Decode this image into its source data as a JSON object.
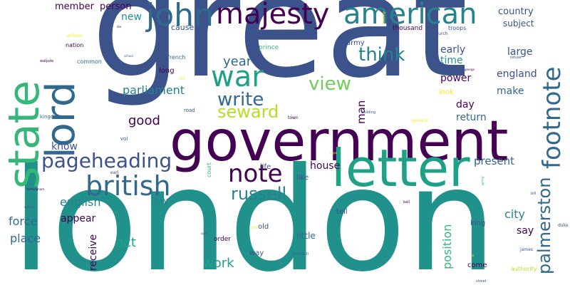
{
  "palette": {
    "background": "#ffffff",
    "dark_purple": "#440154",
    "indigo": "#3b528b",
    "blue": "#31688e",
    "teal_blue": "#26828e",
    "teal": "#21918c",
    "green_teal": "#1fa187",
    "green": "#35b779",
    "light_green": "#6ece58",
    "yellow_green": "#b5de2b",
    "yellow": "#fde725"
  },
  "words": [
    {
      "text": "great",
      "color": "#3b528b",
      "orientation": "horizontal"
    },
    {
      "text": "london",
      "color": "#21918c",
      "orientation": "horizontal"
    },
    {
      "text": "government",
      "color": "#440154",
      "orientation": "horizontal"
    },
    {
      "text": "letter",
      "color": "#1fa187",
      "orientation": "horizontal"
    },
    {
      "text": "state",
      "color": "#35b779",
      "orientation": "vertical"
    },
    {
      "text": "lord",
      "color": "#31688e",
      "orientation": "vertical"
    },
    {
      "text": "majesty",
      "color": "#440154",
      "orientation": "horizontal"
    },
    {
      "text": "american",
      "color": "#26828e",
      "orientation": "horizontal"
    },
    {
      "text": "john",
      "color": "#31688e",
      "orientation": "horizontal"
    },
    {
      "text": "war",
      "color": "#1fa187",
      "orientation": "horizontal"
    },
    {
      "text": "footnote",
      "color": "#31688e",
      "orientation": "vertical"
    },
    {
      "text": "british",
      "color": "#31688e",
      "orientation": "horizontal"
    },
    {
      "text": "note",
      "color": "#440154",
      "orientation": "horizontal"
    },
    {
      "text": "pageheading",
      "color": "#3b528b",
      "orientation": "horizontal"
    },
    {
      "text": "palmerston",
      "color": "#31688e",
      "orientation": "vertical"
    },
    {
      "text": "think",
      "color": "#26828e",
      "orientation": "horizontal"
    },
    {
      "text": "view",
      "color": "#6ece58",
      "orientation": "horizontal"
    },
    {
      "text": "write",
      "color": "#31688e",
      "orientation": "horizontal"
    },
    {
      "text": "seward",
      "color": "#b5de2b",
      "orientation": "horizontal"
    },
    {
      "text": "russell",
      "color": "#26828e",
      "orientation": "horizontal"
    },
    {
      "text": "year",
      "color": "#31688e",
      "orientation": "horizontal"
    },
    {
      "text": "parliament",
      "color": "#26828e",
      "orientation": "horizontal"
    },
    {
      "text": "good",
      "color": "#440154",
      "orientation": "horizontal"
    },
    {
      "text": "know",
      "color": "#3b528b",
      "orientation": "horizontal"
    },
    {
      "text": "english",
      "color": "#26828e",
      "orientation": "horizontal"
    },
    {
      "text": "force",
      "color": "#31688e",
      "orientation": "horizontal"
    },
    {
      "text": "appear",
      "color": "#440154",
      "orientation": "horizontal"
    },
    {
      "text": "law",
      "color": "#26828e",
      "orientation": "horizontal"
    },
    {
      "text": "place",
      "color": "#31688e",
      "orientation": "horizontal"
    },
    {
      "text": "act",
      "color": "#1fa187",
      "orientation": "horizontal"
    },
    {
      "text": "work",
      "color": "#1fa187",
      "orientation": "horizontal"
    },
    {
      "text": "receive",
      "color": "#440154",
      "orientation": "vertical"
    },
    {
      "text": "house",
      "color": "#440154",
      "orientation": "horizontal"
    },
    {
      "text": "present",
      "color": "#31688e",
      "orientation": "horizontal"
    },
    {
      "text": "position",
      "color": "#35b779",
      "orientation": "vertical"
    },
    {
      "text": "city",
      "color": "#26828e",
      "orientation": "horizontal"
    },
    {
      "text": "say",
      "color": "#440154",
      "orientation": "horizontal"
    },
    {
      "text": "england",
      "color": "#3b528b",
      "orientation": "horizontal"
    },
    {
      "text": "make",
      "color": "#31688e",
      "orientation": "horizontal"
    },
    {
      "text": "large",
      "color": "#3b528b",
      "orientation": "horizontal"
    },
    {
      "text": "early",
      "color": "#3b528b",
      "orientation": "horizontal"
    },
    {
      "text": "time",
      "color": "#21918c",
      "orientation": "horizontal"
    },
    {
      "text": "power",
      "color": "#440154",
      "orientation": "horizontal"
    },
    {
      "text": "day",
      "color": "#440154",
      "orientation": "horizontal"
    },
    {
      "text": "return",
      "color": "#31688e",
      "orientation": "horizontal"
    },
    {
      "text": "country",
      "color": "#3b528b",
      "orientation": "horizontal"
    },
    {
      "text": "subject",
      "color": "#3b528b",
      "orientation": "horizontal"
    },
    {
      "text": "member",
      "color": "#440154",
      "orientation": "horizontal"
    },
    {
      "text": "person",
      "color": "#440154",
      "orientation": "horizontal"
    },
    {
      "text": "new",
      "color": "#21918c",
      "orientation": "horizontal"
    },
    {
      "text": "cause",
      "color": "#3b528b",
      "orientation": "horizontal"
    },
    {
      "text": "man",
      "color": "#440154",
      "orientation": "vertical"
    },
    {
      "text": "army",
      "color": "#3b528b",
      "orientation": "horizontal"
    },
    {
      "text": "thousand",
      "color": "#440154",
      "orientation": "horizontal"
    },
    {
      "text": "troops",
      "color": "#3b528b",
      "orientation": "horizontal"
    },
    {
      "text": "king",
      "color": "#3b528b",
      "orientation": "horizontal"
    },
    {
      "text": "old",
      "color": "#3b528b",
      "orientation": "horizontal"
    },
    {
      "text": "little",
      "color": "#31688e",
      "orientation": "horizontal"
    },
    {
      "text": "life",
      "color": "#3b528b",
      "orientation": "horizontal"
    },
    {
      "text": "like",
      "color": "#3b528b",
      "orientation": "horizontal"
    },
    {
      "text": "tell",
      "color": "#3b528b",
      "orientation": "horizontal"
    },
    {
      "text": "order",
      "color": "#440154",
      "orientation": "horizontal"
    },
    {
      "text": "way",
      "color": "#3b528b",
      "orientation": "horizontal"
    },
    {
      "text": "come",
      "color": "#440154",
      "orientation": "horizontal"
    },
    {
      "text": "look",
      "color": "#fde725",
      "orientation": "horizontal"
    },
    {
      "text": "long",
      "color": "#440154",
      "orientation": "horizontal"
    },
    {
      "text": "french",
      "color": "#31688e",
      "orientation": "horizontal"
    },
    {
      "text": "common",
      "color": "#31688e",
      "orientation": "horizontal"
    },
    {
      "text": "nation",
      "color": "#440154",
      "orientation": "horizontal"
    },
    {
      "text": "prince",
      "color": "#35b779",
      "orientation": "horizontal"
    },
    {
      "text": "kingdom",
      "color": "#31688e",
      "orientation": "horizontal"
    },
    {
      "text": "vol",
      "color": "#3b528b",
      "orientation": "horizontal"
    },
    {
      "text": "road",
      "color": "#3b528b",
      "orientation": "horizontal"
    },
    {
      "text": "court",
      "color": "#35b779",
      "orientation": "vertical"
    },
    {
      "text": "earl",
      "color": "#3b528b",
      "orientation": "horizontal"
    },
    {
      "text": "church",
      "color": "#3b528b",
      "orientation": "horizontal"
    },
    {
      "text": "authority",
      "color": "#b5de2b",
      "orientation": "horizontal"
    },
    {
      "text": "johnson",
      "color": "#31688e",
      "orientation": "horizontal"
    },
    {
      "text": "james",
      "color": "#3b528b",
      "orientation": "horizontal"
    },
    {
      "text": "duke",
      "color": "#3b528b",
      "orientation": "horizontal"
    },
    {
      "text": "bill",
      "color": "#3b528b",
      "orientation": "horizontal"
    },
    {
      "text": "walpole",
      "color": "#440154",
      "orientation": "horizontal"
    },
    {
      "text": "general",
      "color": "#fde725",
      "orientation": "horizontal"
    },
    {
      "text": "town",
      "color": "#440154",
      "orientation": "horizontal"
    },
    {
      "text": "building",
      "color": "#3b528b",
      "orientation": "horizontal"
    },
    {
      "text": "street",
      "color": "#3b528b",
      "orientation": "horizontal"
    },
    {
      "text": "refuse",
      "color": "#3b528b",
      "orientation": "horizontal"
    },
    {
      "text": "hill",
      "color": "#fde725",
      "orientation": "horizontal"
    },
    {
      "text": "army",
      "color": "#35b779",
      "orientation": "vertical"
    },
    {
      "text": "pitt",
      "color": "#fde725",
      "orientation": "horizontal"
    },
    {
      "text": "ball",
      "color": "#440154",
      "orientation": "horizontal"
    },
    {
      "text": "school",
      "color": "#3b528b",
      "orientation": "horizontal"
    },
    {
      "text": "birmingham",
      "color": "#440154",
      "orientation": "horizontal"
    },
    {
      "text": "railway",
      "color": "#3b528b",
      "orientation": "horizontal"
    },
    {
      "text": "open",
      "color": "#3b528b",
      "orientation": "horizontal"
    },
    {
      "text": "sir",
      "color": "#fde725",
      "orientation": "horizontal"
    },
    {
      "text": "george",
      "color": "#440154",
      "orientation": "horizontal"
    },
    {
      "text": "enemy",
      "color": "#fde725",
      "orientation": "vertical"
    },
    {
      "text": "william",
      "color": "#fde725",
      "orientation": "horizontal"
    },
    {
      "text": "die",
      "color": "#440154",
      "orientation": "horizontal"
    },
    {
      "text": "hope",
      "color": "#fde725",
      "orientation": "horizontal"
    }
  ]
}
